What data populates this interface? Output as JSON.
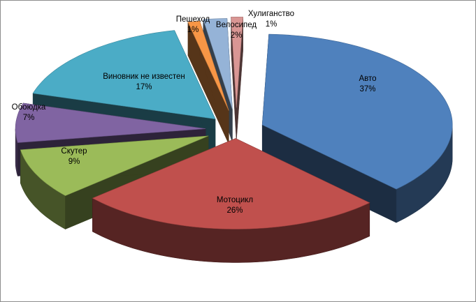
{
  "chart_data": {
    "type": "pie",
    "title": "",
    "style": "3d-exploded",
    "slices": [
      {
        "label": "Авто",
        "value": 37,
        "pct_text": "37%",
        "color": "#4f81bd"
      },
      {
        "label": "Мотоцикл",
        "value": 26,
        "pct_text": "26%",
        "color": "#c0504d"
      },
      {
        "label": "Скутер",
        "value": 9,
        "pct_text": "9%",
        "color": "#9bbb59"
      },
      {
        "label": "Обоюдка",
        "value": 7,
        "pct_text": "7%",
        "color": "#8064a2"
      },
      {
        "label": "Виновник не известен",
        "value": 17,
        "pct_text": "17%",
        "color": "#4bacc6"
      },
      {
        "label": "Пешеход",
        "value": 1,
        "pct_text": "1%",
        "color": "#f79646"
      },
      {
        "label": "Велосипед",
        "value": 2,
        "pct_text": "2%",
        "color": "#95b3d7"
      },
      {
        "label": "Хулиганство",
        "value": 1,
        "pct_text": "1%",
        "color": "#d99694"
      }
    ]
  }
}
